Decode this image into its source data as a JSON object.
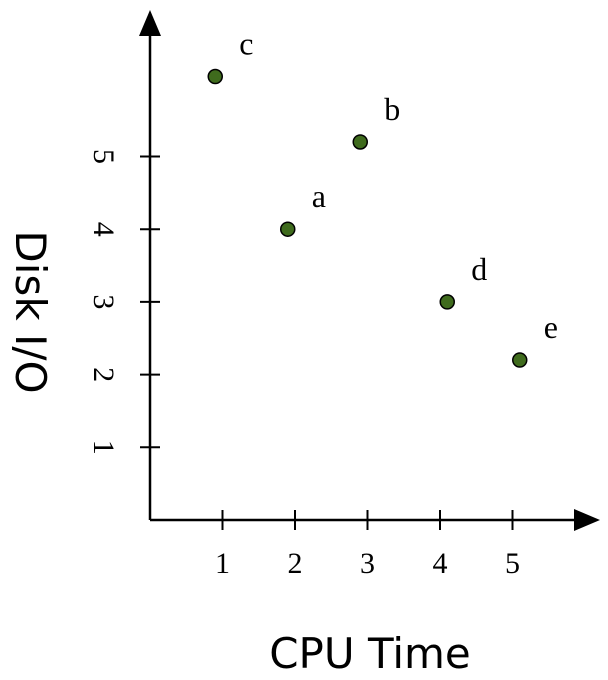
{
  "chart_data": {
    "type": "scatter",
    "xlabel": "CPU Time",
    "ylabel": "Disk I/O",
    "xlim": [
      0,
      5.75
    ],
    "ylim": [
      0,
      6.7
    ],
    "xticks": [
      1,
      2,
      3,
      4,
      5
    ],
    "yticks": [
      1,
      2,
      3,
      4,
      5
    ],
    "grid": false,
    "point_color": "#3f6b1d",
    "points": [
      {
        "label": "c",
        "x": 0.9,
        "y": 6.1
      },
      {
        "label": "b",
        "x": 2.9,
        "y": 5.2
      },
      {
        "label": "a",
        "x": 1.9,
        "y": 4.0
      },
      {
        "label": "d",
        "x": 4.1,
        "y": 3.0
      },
      {
        "label": "e",
        "x": 5.1,
        "y": 2.2
      }
    ]
  }
}
